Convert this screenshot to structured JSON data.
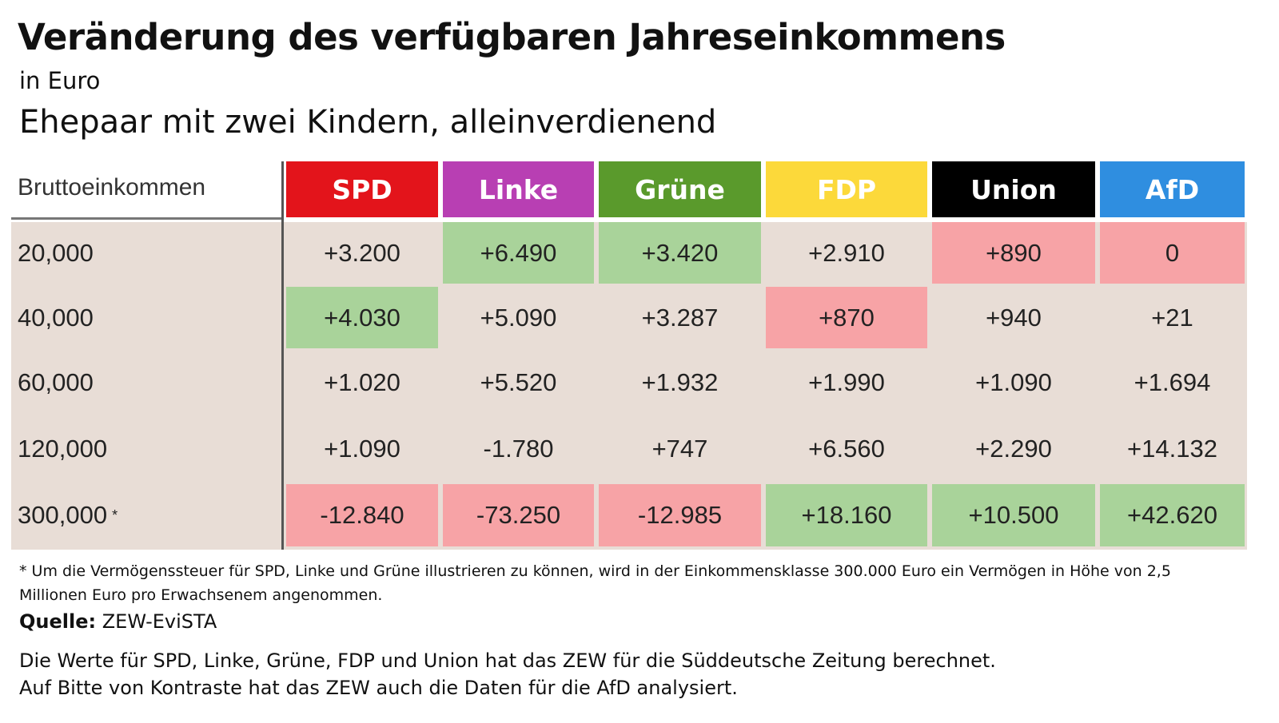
{
  "header": {
    "title": "Veränderung des verfügbaren Jahreseinkommens",
    "unit": "in Euro",
    "subtitle": "Ehepaar mit zwei Kindern, alleinverdienend"
  },
  "table": {
    "corner": "Bruttoeinkommen",
    "columns": [
      {
        "name": "SPD",
        "color": "#e3141b"
      },
      {
        "name": "Linke",
        "color": "#b83fb3"
      },
      {
        "name": "Grüne",
        "color": "#5a9a2c"
      },
      {
        "name": "FDP",
        "color": "#fcd93a"
      },
      {
        "name": "Union",
        "color": "#000000"
      },
      {
        "name": "AfD",
        "color": "#2f8ee0"
      }
    ],
    "rows": [
      {
        "label": "20,000",
        "cells": [
          "+3.200",
          "+6.490",
          "+3.420",
          "+2.910",
          "+890",
          "0"
        ],
        "colors": [
          "#e8ddd6",
          "#a9d39a",
          "#a9d39a",
          "#e8ddd6",
          "#f7a3a6",
          "#f7a3a6"
        ]
      },
      {
        "label": "40,000",
        "cells": [
          "+4.030",
          "+5.090",
          "+3.287",
          "+870",
          "+940",
          "+21"
        ],
        "colors": [
          "#a9d39a",
          "#e8ddd6",
          "#e8ddd6",
          "#f7a3a6",
          "#e8ddd6",
          "#e8ddd6"
        ]
      },
      {
        "label": "60,000",
        "cells": [
          "+1.020",
          "+5.520",
          "+1.932",
          "+1.990",
          "+1.090",
          "+1.694"
        ],
        "colors": [
          "#e8ddd6",
          "#e8ddd6",
          "#e8ddd6",
          "#e8ddd6",
          "#e8ddd6",
          "#e8ddd6"
        ]
      },
      {
        "label": "120,000",
        "cells": [
          "+1.090",
          "-1.780",
          "+747",
          "+6.560",
          "+2.290",
          "+14.132"
        ],
        "colors": [
          "#e8ddd6",
          "#e8ddd6",
          "#e8ddd6",
          "#e8ddd6",
          "#e8ddd6",
          "#e8ddd6"
        ]
      },
      {
        "label": "300,000",
        "mark": "*",
        "cells": [
          "-12.840",
          "-73.250",
          "-12.985",
          "+18.160",
          "+10.500",
          "+42.620"
        ],
        "colors": [
          "#f7a3a6",
          "#f7a3a6",
          "#f7a3a6",
          "#a9d39a",
          "#a9d39a",
          "#a9d39a"
        ]
      }
    ]
  },
  "footer": {
    "footnote": "* Um die Vermögenssteuer für SPD, Linke und Grüne illustrieren zu können, wird in der Einkommensklasse 300.000 Euro ein Vermögen in Höhe von 2,5 Millionen Euro pro Erwachsenem angenommen.",
    "source_label": "Quelle:",
    "source": "ZEW-EviSTA",
    "notes": [
      "Die Werte für SPD, Linke, Grüne, FDP und Union hat das ZEW für die Süddeutsche Zeitung berechnet.",
      "Auf Bitte von Kontraste hat das ZEW auch die Daten für die AfD analysiert."
    ]
  }
}
